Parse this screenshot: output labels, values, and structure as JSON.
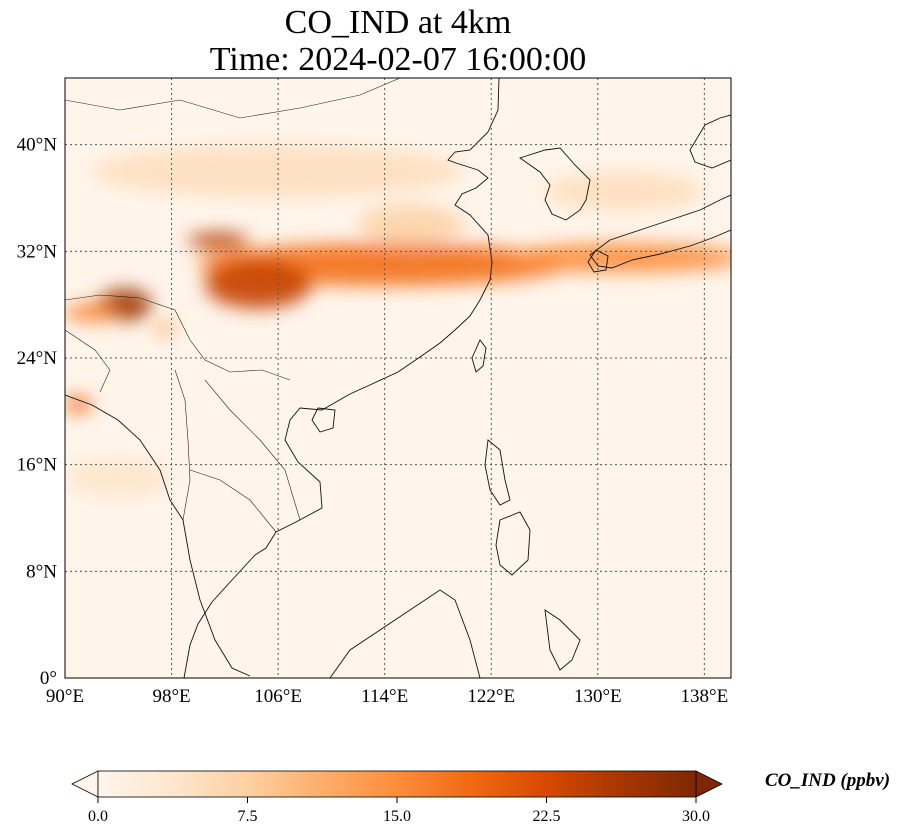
{
  "title": {
    "line1": "CO_IND at 4km",
    "line2": "Time: 2024-02-07 16:00:00"
  },
  "map": {
    "extent": {
      "lon": [
        90,
        140
      ],
      "lat": [
        0,
        45
      ]
    },
    "lon_ticks": [
      {
        "value": 90,
        "label": "90°E"
      },
      {
        "value": 98,
        "label": "98°E"
      },
      {
        "value": 106,
        "label": "106°E"
      },
      {
        "value": 114,
        "label": "114°E"
      },
      {
        "value": 122,
        "label": "122°E"
      },
      {
        "value": 130,
        "label": "130°E"
      },
      {
        "value": 138,
        "label": "138°E"
      }
    ],
    "lat_ticks": [
      {
        "value": 0,
        "label": "0°"
      },
      {
        "value": 8,
        "label": "8°N"
      },
      {
        "value": 16,
        "label": "16°N"
      },
      {
        "value": 24,
        "label": "24°N"
      },
      {
        "value": 32,
        "label": "32°N"
      },
      {
        "value": 40,
        "label": "40°N"
      }
    ],
    "gridlines": true,
    "background_color": "#fff5eb",
    "plumes": [
      {
        "name": "east-china-band",
        "lon": 114,
        "lat": 31,
        "rlon": 14,
        "rlat": 1.6,
        "value": 18
      },
      {
        "name": "central-china",
        "lon": 104.5,
        "lat": 29.5,
        "rlon": 4,
        "rlat": 1.8,
        "value": 24
      },
      {
        "name": "sichuan-north",
        "lon": 101.5,
        "lat": 32.8,
        "rlon": 2.3,
        "rlat": 0.6,
        "value": 25
      },
      {
        "name": "pacific-band",
        "lon": 132,
        "lat": 31.5,
        "rlon": 9,
        "rlat": 1.1,
        "value": 15
      },
      {
        "name": "himalaya-east",
        "lon": 94.5,
        "lat": 28,
        "rlon": 2,
        "rlat": 1.2,
        "value": 27
      },
      {
        "name": "assam",
        "lon": 92,
        "lat": 27.4,
        "rlon": 2,
        "rlat": 0.7,
        "value": 16
      },
      {
        "name": "bangladesh",
        "lon": 91,
        "lat": 20.5,
        "rlon": 1,
        "rlat": 0.6,
        "value": 20
      },
      {
        "name": "nepal",
        "lon": 97.5,
        "lat": 26.2,
        "rlon": 0.8,
        "rlat": 0.5,
        "value": 12
      },
      {
        "name": "north-china-haze",
        "lon": 106,
        "lat": 38,
        "rlon": 14,
        "rlat": 2,
        "value": 5
      },
      {
        "name": "bay-of-bengal",
        "lon": 94,
        "lat": 15,
        "rlon": 4,
        "rlat": 1.5,
        "value": 4
      },
      {
        "name": "korea-japan",
        "lon": 132,
        "lat": 36.5,
        "rlon": 6,
        "rlat": 1.5,
        "value": 5
      },
      {
        "name": "yellow-sea",
        "lon": 116,
        "lat": 34,
        "rlon": 4,
        "rlat": 1.5,
        "value": 7
      }
    ]
  },
  "colorbar": {
    "label": "CO_IND (ppbv)",
    "min": 0,
    "max": 30,
    "extend": "both",
    "ticks": [
      {
        "value": 0,
        "label": "0.0"
      },
      {
        "value": 7.5,
        "label": "7.5"
      },
      {
        "value": 15,
        "label": "15.0"
      },
      {
        "value": 22.5,
        "label": "22.5"
      },
      {
        "value": 30,
        "label": "30.0"
      }
    ],
    "colormap": [
      "#fff5eb",
      "#fee6ce",
      "#fdd0a2",
      "#fdae6b",
      "#fd8d3c",
      "#f16913",
      "#d94801",
      "#a63603",
      "#7f2704"
    ]
  }
}
